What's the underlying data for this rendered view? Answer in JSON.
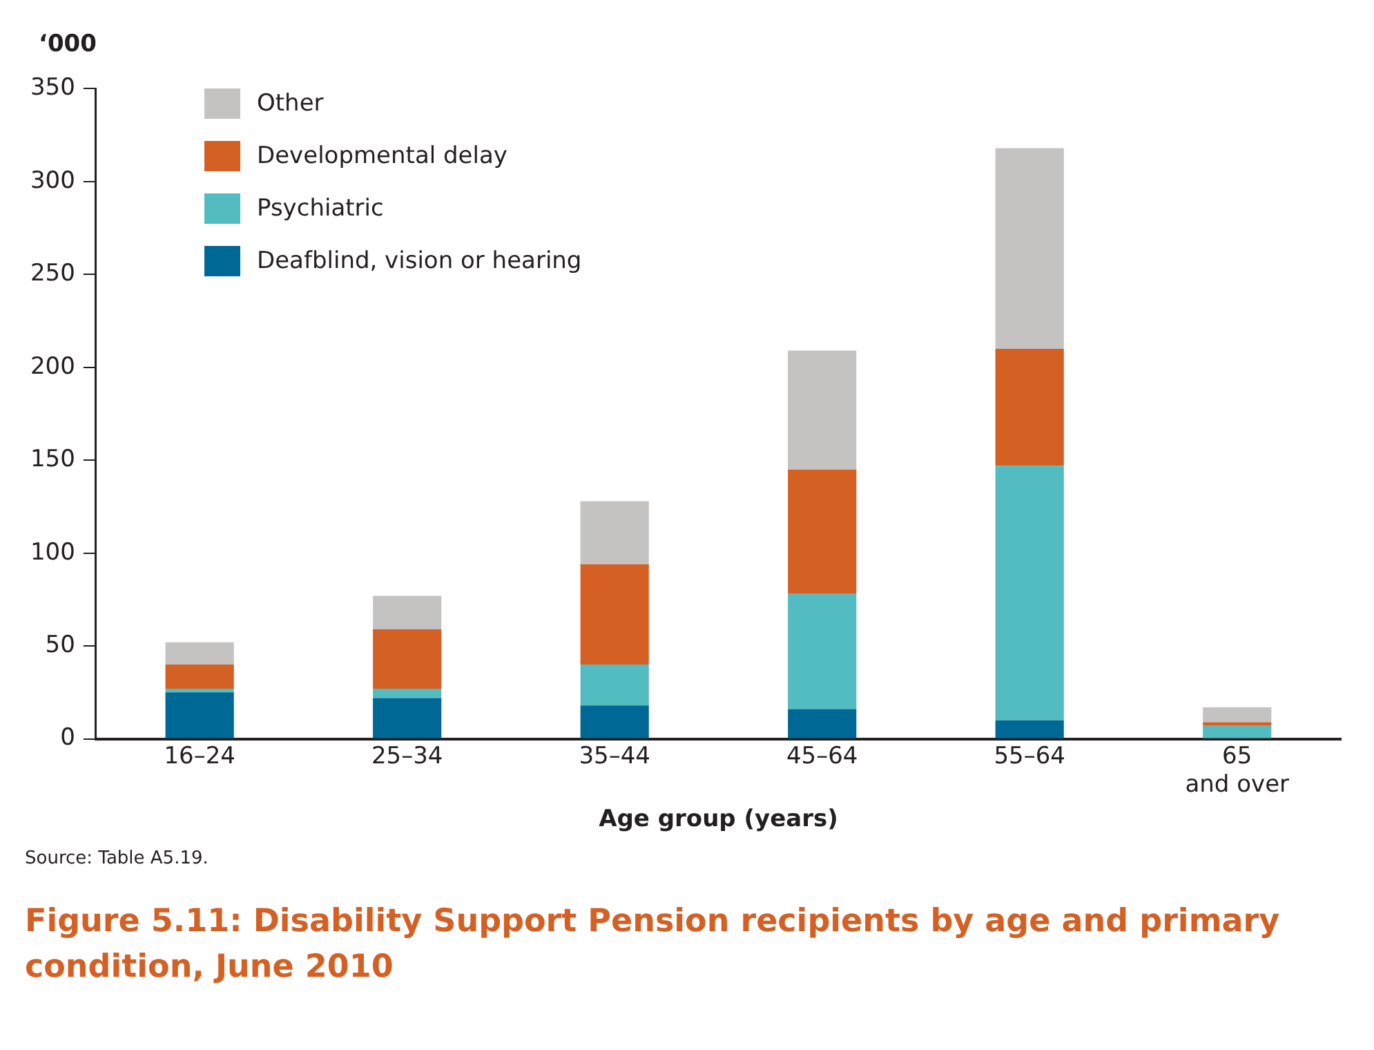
{
  "chart_data": {
    "type": "bar",
    "title": "Figure 5.11: Disability Support Pension recipients by age and primary condition, June 2010",
    "xlabel": "Age group (years)",
    "ylabel": "‘000",
    "annotations": [
      "Source: Table A5.19."
    ],
    "categories": [
      "16–24",
      "25–34",
      "35–44",
      "45–64",
      "55–64",
      "65 and over"
    ],
    "stacked": true,
    "legend": "top left",
    "ylim": [
      0,
      350
    ],
    "yticks": [
      0,
      50,
      100,
      150,
      200,
      250,
      300,
      350
    ],
    "series": [
      {
        "name": "Deafblind, vision or hearing",
        "color": "#006894",
        "values": [
          25,
          22,
          18,
          16,
          10,
          0
        ]
      },
      {
        "name": "Psychiatric",
        "color": "#53bcc1",
        "values": [
          2,
          5,
          22,
          62,
          137,
          7
        ]
      },
      {
        "name": "Developmental delay",
        "color": "#d46024",
        "values": [
          13,
          32,
          54,
          67,
          63,
          2
        ]
      },
      {
        "name": "Other",
        "color": "#c4c3c1",
        "values": [
          12,
          18,
          34,
          64,
          108,
          8
        ]
      }
    ]
  }
}
